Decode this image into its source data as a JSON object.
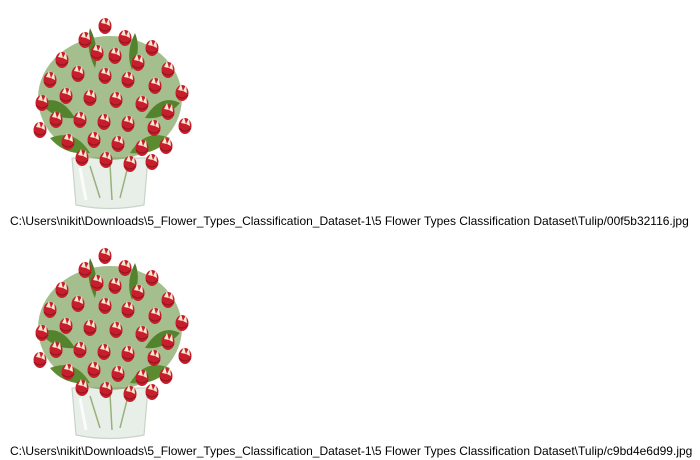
{
  "images": [
    {
      "caption": "C:\\Users\\nikit\\Downloads\\5_Flower_Types_Classification_Dataset-1\\5 Flower Types Classification Dataset\\Tulip/00f5b32116.jpg",
      "subject": "tulip-bouquet-icon"
    },
    {
      "caption": "C:\\Users\\nikit\\Downloads\\5_Flower_Types_Classification_Dataset-1\\5 Flower Types Classification Dataset\\Tulip/c9bd4e6d99.jpg",
      "subject": "tulip-bouquet-icon"
    }
  ],
  "colors": {
    "background": "#ffffff",
    "text": "#000000",
    "petal_red": "#c81e2c",
    "petal_cream": "#f4ead2",
    "leaf_green": "#4f7a2a",
    "vase_glass": "#e8efe8"
  }
}
